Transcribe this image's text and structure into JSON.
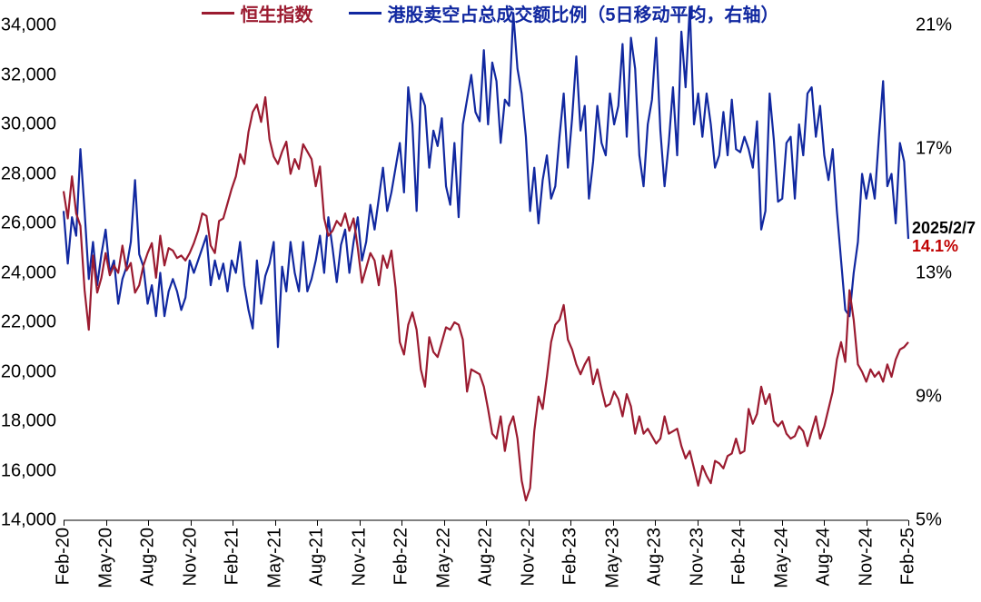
{
  "legend": {
    "series1": {
      "label": "恒生指数",
      "color": "#9b1b30"
    },
    "series2": {
      "label": "港股卖空占总成交额比例（5日移动平均，右轴）",
      "color": "#1128a0"
    }
  },
  "annotation": {
    "date": "2025/2/7",
    "value": "14.1%",
    "date_color": "#000000",
    "value_color": "#c00000"
  },
  "chart": {
    "type": "line-dual-axis",
    "background_color": "#ffffff",
    "axis_color": "#000000",
    "tick_fontsize": 20,
    "line_width": 2.2,
    "y_left": {
      "min": 14000,
      "max": 34000,
      "step": 2000,
      "ticks": [
        "14,000",
        "16,000",
        "18,000",
        "20,000",
        "22,000",
        "24,000",
        "26,000",
        "28,000",
        "30,000",
        "32,000",
        "34,000"
      ]
    },
    "y_right": {
      "min": 5,
      "max": 21,
      "step": 4,
      "ticks": [
        "5%",
        "9%",
        "13%",
        "17%",
        "21%"
      ]
    },
    "x": {
      "labels": [
        "Feb-20",
        "May-20",
        "Aug-20",
        "Nov-20",
        "Feb-21",
        "May-21",
        "Aug-21",
        "Nov-21",
        "Feb-22",
        "May-22",
        "Aug-22",
        "Nov-22",
        "Feb-23",
        "May-23",
        "Aug-23",
        "Nov-23",
        "Feb-24",
        "May-24",
        "Aug-24",
        "Nov-24",
        "Feb-25"
      ]
    },
    "series1_values": [
      27300,
      26200,
      27900,
      26400,
      25900,
      23300,
      21700,
      24700,
      23200,
      23800,
      24800,
      23900,
      24300,
      24000,
      25100,
      24100,
      24400,
      23200,
      23500,
      24300,
      24800,
      25200,
      23800,
      25500,
      24300,
      25000,
      24900,
      24600,
      24700,
      24500,
      24800,
      25200,
      25700,
      26400,
      26300,
      25100,
      24800,
      26100,
      26200,
      26800,
      27400,
      27900,
      28800,
      28400,
      29700,
      30500,
      30800,
      30100,
      31100,
      29400,
      28700,
      28400,
      28900,
      29300,
      28000,
      28600,
      28200,
      29200,
      28900,
      28600,
      27500,
      28300,
      26200,
      25500,
      25700,
      26100,
      25900,
      26400,
      25700,
      26200,
      25000,
      23600,
      24200,
      24800,
      24500,
      23500,
      24700,
      24200,
      24900,
      23400,
      21200,
      20700,
      21900,
      22400,
      21700,
      20100,
      19400,
      21400,
      20800,
      20600,
      21200,
      21800,
      21700,
      22000,
      21900,
      21300,
      19200,
      20100,
      20000,
      19900,
      19400,
      18500,
      17500,
      17300,
      18200,
      16800,
      17800,
      18200,
      17300,
      15600,
      14800,
      15300,
      17600,
      19000,
      18500,
      19800,
      21200,
      21900,
      22100,
      22700,
      21300,
      20900,
      20300,
      19900,
      20300,
      20600,
      19500,
      20100,
      19300,
      18600,
      18700,
      19200,
      18900,
      18200,
      19100,
      18600,
      17500,
      18200,
      17500,
      17700,
      17400,
      17100,
      17300,
      18200,
      17500,
      17600,
      17700,
      17000,
      16500,
      16800,
      16100,
      15400,
      16200,
      15800,
      15500,
      16400,
      16300,
      16100,
      16600,
      16700,
      17300,
      16700,
      16800,
      18500,
      17900,
      18300,
      19400,
      18700,
      19100,
      18000,
      17800,
      18000,
      17500,
      17300,
      17400,
      17800,
      17600,
      17000,
      17600,
      18200,
      17300,
      17800,
      18500,
      19200,
      20500,
      21200,
      20400,
      23300,
      22100,
      20300,
      20000,
      19600,
      20100,
      19800,
      20000,
      19600,
      20300,
      19800,
      20500,
      20900,
      21000,
      21200
    ],
    "series2_values": [
      15.0,
      13.3,
      14.8,
      14.2,
      17.0,
      15.0,
      12.8,
      14.0,
      12.6,
      13.6,
      14.4,
      13.0,
      13.4,
      12.0,
      12.8,
      13.2,
      14.0,
      16.0,
      13.6,
      13.2,
      12.0,
      12.6,
      11.6,
      13.0,
      11.6,
      12.4,
      12.8,
      12.4,
      11.8,
      12.2,
      13.4,
      13.0,
      13.4,
      13.8,
      14.2,
      12.6,
      13.4,
      12.8,
      13.3,
      12.4,
      13.4,
      13.0,
      14.0,
      12.6,
      11.8,
      11.2,
      13.4,
      12.0,
      12.9,
      13.3,
      14.0,
      10.6,
      13.2,
      12.4,
      14.0,
      13.0,
      12.4,
      14.0,
      12.4,
      12.8,
      13.4,
      14.2,
      13.0,
      14.8,
      13.8,
      12.7,
      13.9,
      14.4,
      13.0,
      14.0,
      14.8,
      13.4,
      14.0,
      15.2,
      14.4,
      15.4,
      16.4,
      15.0,
      15.6,
      16.4,
      17.2,
      15.6,
      19.0,
      17.8,
      15.0,
      18.8,
      18.4,
      16.4,
      17.6,
      17.1,
      18.0,
      15.8,
      15.2,
      17.2,
      14.8,
      17.8,
      18.6,
      19.4,
      18.2,
      17.9,
      20.2,
      17.8,
      19.8,
      19.2,
      17.2,
      18.6,
      18.4,
      21.4,
      19.6,
      18.8,
      17.4,
      15.0,
      16.4,
      14.6,
      16.0,
      16.8,
      15.4,
      15.8,
      17.4,
      18.8,
      16.4,
      18.0,
      20.0,
      17.6,
      18.4,
      15.4,
      16.6,
      18.4,
      17.2,
      16.8,
      18.8,
      17.8,
      18.4,
      20.4,
      17.4,
      20.6,
      19.6,
      16.8,
      15.8,
      17.8,
      18.6,
      20.6,
      17.6,
      15.8,
      17.2,
      19.0,
      16.8,
      20.8,
      19.0,
      21.6,
      17.8,
      18.8,
      17.4,
      18.8,
      17.8,
      16.4,
      16.8,
      18.2,
      16.8,
      18.6,
      17.0,
      16.9,
      17.4,
      17.0,
      16.4,
      17.9,
      14.4,
      15.0,
      18.8,
      17.3,
      15.3,
      15.4,
      17.2,
      17.4,
      15.4,
      17.8,
      16.8,
      18.8,
      19.0,
      17.4,
      18.4,
      16.8,
      16.0,
      17.0,
      15.0,
      13.4,
      11.8,
      11.6,
      13.0,
      14.0,
      16.2,
      15.4,
      16.2,
      15.4,
      17.4,
      19.2,
      15.8,
      16.2,
      14.6,
      17.2,
      16.6,
      14.1
    ]
  }
}
